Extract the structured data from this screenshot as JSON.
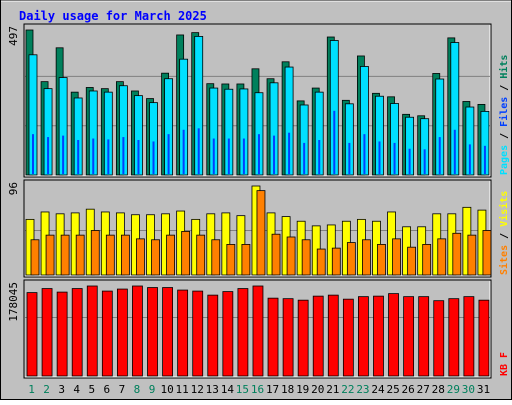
{
  "title": "Daily usage for March 2025",
  "colors": {
    "background": "#c0c0c0",
    "panel": "#c0c0c0",
    "title": "#0000ff",
    "hits": "#00805c",
    "files": "#0040ff",
    "pages": "#00e0ff",
    "visits": "#ffff00",
    "sites": "#ff8000",
    "kbytes": "#ff0000",
    "weekday_label": "#000000",
    "weekend_label": "#00805c"
  },
  "chart_data": [
    {
      "type": "bar",
      "name": "hits-files-pages",
      "scale_label": "497",
      "ylim": [
        0,
        497
      ],
      "legend": [
        {
          "key": "hits",
          "label": "Hits"
        },
        {
          "key": "files",
          "label": "Files"
        },
        {
          "key": "pages",
          "label": "Pages"
        }
      ],
      "categories": [
        "1",
        "2",
        "3",
        "4",
        "5",
        "6",
        "7",
        "8",
        "9",
        "10",
        "11",
        "12",
        "13",
        "14",
        "15",
        "16",
        "17",
        "18",
        "19",
        "20",
        "21",
        "22",
        "23",
        "24",
        "25",
        "26",
        "27",
        "28",
        "29",
        "30",
        "31"
      ],
      "series": [
        {
          "name": "Hits",
          "values": [
            497,
            320,
            436,
            284,
            300,
            296,
            320,
            288,
            262,
            349,
            480,
            488,
            313,
            312,
            312,
            364,
            330,
            388,
            254,
            298,
            473,
            256,
            408,
            280,
            268,
            208,
            203,
            348,
            470,
            252,
            242
          ]
        },
        {
          "name": "Files",
          "values": [
            140,
            130,
            135,
            120,
            125,
            122,
            130,
            120,
            115,
            140,
            155,
            160,
            125,
            125,
            125,
            140,
            135,
            145,
            110,
            120,
            220,
            110,
            140,
            115,
            110,
            90,
            88,
            130,
            155,
            105,
            100
          ]
        },
        {
          "name": "Pages",
          "values": [
            412,
            296,
            334,
            264,
            288,
            284,
            306,
            272,
            248,
            330,
            397,
            475,
            298,
            294,
            295,
            282,
            316,
            370,
            240,
            284,
            461,
            244,
            372,
            270,
            245,
            198,
            193,
            329,
            454,
            233,
            218
          ]
        }
      ]
    },
    {
      "type": "bar",
      "name": "visits-sites",
      "scale_label": "96",
      "ylim": [
        0,
        96
      ],
      "legend": [
        {
          "key": "visits",
          "label": "Visits"
        },
        {
          "key": "sites",
          "label": "Sites"
        }
      ],
      "categories": [
        "1",
        "2",
        "3",
        "4",
        "5",
        "6",
        "7",
        "8",
        "9",
        "10",
        "11",
        "12",
        "13",
        "14",
        "15",
        "16",
        "17",
        "18",
        "19",
        "20",
        "21",
        "22",
        "23",
        "24",
        "25",
        "26",
        "27",
        "28",
        "29",
        "30",
        "31"
      ],
      "series": [
        {
          "name": "Visits",
          "values": [
            60,
            68,
            66,
            67,
            71,
            68,
            67,
            65,
            65,
            66,
            69,
            60,
            66,
            67,
            64,
            96,
            67,
            63,
            58,
            53,
            54,
            58,
            60,
            58,
            68,
            52,
            52,
            66,
            66,
            73,
            70
          ]
        },
        {
          "name": "Sites",
          "values": [
            38,
            43,
            43,
            43,
            48,
            43,
            43,
            39,
            38,
            43,
            47,
            43,
            38,
            33,
            33,
            91,
            44,
            41,
            38,
            28,
            29,
            35,
            38,
            33,
            39,
            30,
            33,
            39,
            45,
            43,
            48
          ]
        }
      ]
    },
    {
      "type": "bar",
      "name": "kbytes",
      "scale_label": "178045",
      "ylim": [
        0,
        178045
      ],
      "legend": [
        {
          "key": "kbytes",
          "label": "KB F"
        }
      ],
      "categories": [
        "1",
        "2",
        "3",
        "4",
        "5",
        "6",
        "7",
        "8",
        "9",
        "10",
        "11",
        "12",
        "13",
        "14",
        "15",
        "16",
        "17",
        "18",
        "19",
        "20",
        "21",
        "22",
        "23",
        "24",
        "25",
        "26",
        "27",
        "28",
        "29",
        "30",
        "31"
      ],
      "series": [
        {
          "name": "KB F",
          "values": [
            165000,
            173000,
            166000,
            173000,
            178045,
            168000,
            172000,
            178045,
            175000,
            175000,
            170000,
            168000,
            160000,
            167000,
            173000,
            178045,
            154000,
            153000,
            150000,
            158000,
            160000,
            152000,
            157000,
            158000,
            163000,
            157000,
            157000,
            149000,
            153000,
            157000,
            150000
          ]
        }
      ]
    }
  ],
  "weekend_days": [
    "1",
    "2",
    "8",
    "9",
    "15",
    "16",
    "22",
    "23",
    "29",
    "30"
  ]
}
